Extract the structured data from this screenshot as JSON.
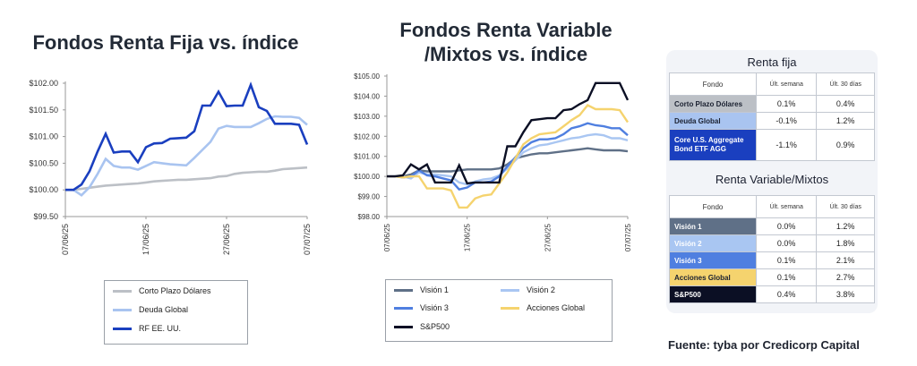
{
  "left_title": "Fondos Renta Fija vs. índice",
  "mid_title_line1": "Fondos Renta Variable",
  "mid_title_line2": "/Mixtos vs. índice",
  "source": "Fuente: tyba por Credicorp Capital",
  "colors": {
    "corto_plazo": "#bcc0c6",
    "deuda_global": "#a9c4f0",
    "rf_eeuu": "#1a3fbf",
    "vision1": "#5f7087",
    "vision2": "#a9c6f2",
    "vision3": "#4f7fe0",
    "acciones_global": "#f5d36e",
    "sp500": "#0b0f24"
  },
  "chart_data": [
    {
      "type": "line",
      "title": "Fondos Renta Fija vs. índice",
      "x_ticks": [
        "07/06/25",
        "17/06/25",
        "27/06/25",
        "07/07/25"
      ],
      "x_range": [
        "07/06/25",
        "07/07/25"
      ],
      "ylim": [
        99.5,
        102.0
      ],
      "y_ticks": [
        "$99.50",
        "$100.00",
        "$100.50",
        "$101.00",
        "$101.50",
        "$102.00"
      ],
      "grid": false,
      "legend": "bottom",
      "series": [
        {
          "name": "Corto Plazo Dólares",
          "color_key": "corto_plazo",
          "values": [
            100.0,
            100.0,
            100.02,
            100.04,
            100.06,
            100.08,
            100.09,
            100.1,
            100.11,
            100.12,
            100.14,
            100.16,
            100.17,
            100.18,
            100.19,
            100.19,
            100.2,
            100.21,
            100.22,
            100.25,
            100.26,
            100.3,
            100.32,
            100.33,
            100.34,
            100.34,
            100.36,
            100.39,
            100.4,
            100.41,
            100.42
          ]
        },
        {
          "name": "Deuda Global",
          "color_key": "deuda_global",
          "values": [
            100.0,
            100.0,
            99.9,
            100.05,
            100.3,
            100.58,
            100.45,
            100.42,
            100.42,
            100.38,
            100.45,
            100.52,
            100.5,
            100.48,
            100.47,
            100.46,
            100.6,
            100.75,
            100.9,
            101.15,
            101.2,
            101.18,
            101.18,
            101.18,
            101.25,
            101.33,
            101.38,
            101.37,
            101.37,
            101.35,
            101.22
          ]
        },
        {
          "name": "RF EE. UU.",
          "color_key": "rf_eeuu",
          "values": [
            100.0,
            100.0,
            100.1,
            100.35,
            100.72,
            101.05,
            100.7,
            100.72,
            100.72,
            100.52,
            100.8,
            100.87,
            100.88,
            100.96,
            100.97,
            100.98,
            101.1,
            101.58,
            101.58,
            101.84,
            101.57,
            101.58,
            101.58,
            101.97,
            101.55,
            101.48,
            101.24,
            101.24,
            101.24,
            101.22,
            100.85
          ]
        }
      ]
    },
    {
      "type": "line",
      "title": "Fondos Renta Variable /Mixtos vs. índice",
      "x_ticks": [
        "07/06/25",
        "17/06/25",
        "27/06/25",
        "07/07/25"
      ],
      "x_range": [
        "07/06/25",
        "07/07/25"
      ],
      "ylim": [
        98.0,
        105.0
      ],
      "y_ticks": [
        "$98.00",
        "$99.00",
        "$100.00",
        "$101.00",
        "$102.00",
        "$103.00",
        "$104.00",
        "$105.00"
      ],
      "grid": false,
      "legend": "bottom",
      "series": [
        {
          "name": "Visión 1",
          "color_key": "vision1",
          "values": [
            100.0,
            100.0,
            100.0,
            100.1,
            100.3,
            100.25,
            100.25,
            100.25,
            100.25,
            100.3,
            100.35,
            100.35,
            100.35,
            100.35,
            100.4,
            100.6,
            100.9,
            101.0,
            101.1,
            101.15,
            101.15,
            101.2,
            101.25,
            101.3,
            101.35,
            101.4,
            101.35,
            101.3,
            101.3,
            101.3,
            101.25
          ]
        },
        {
          "name": "Visión 2",
          "color_key": "vision2",
          "values": [
            100.0,
            100.0,
            100.0,
            99.9,
            100.2,
            100.1,
            100.1,
            100.05,
            100.0,
            99.7,
            99.6,
            99.75,
            99.85,
            99.9,
            100.05,
            100.4,
            100.8,
            101.2,
            101.4,
            101.55,
            101.6,
            101.7,
            101.8,
            101.9,
            101.95,
            102.05,
            102.1,
            102.05,
            101.9,
            101.9,
            101.8
          ]
        },
        {
          "name": "Visión 3",
          "color_key": "vision3",
          "values": [
            100.0,
            100.0,
            99.95,
            100.0,
            100.3,
            100.05,
            100.0,
            99.9,
            99.8,
            99.35,
            99.45,
            99.7,
            99.7,
            99.75,
            100.0,
            100.5,
            100.95,
            101.4,
            101.7,
            101.85,
            101.85,
            101.9,
            102.1,
            102.4,
            102.5,
            102.65,
            102.55,
            102.5,
            102.4,
            102.4,
            102.05
          ]
        },
        {
          "name": "Acciones Global",
          "color_key": "acciones_global",
          "values": [
            100.0,
            100.0,
            99.95,
            100.0,
            100.0,
            99.4,
            99.4,
            99.4,
            99.3,
            98.45,
            98.45,
            98.9,
            99.05,
            99.1,
            99.65,
            100.2,
            100.9,
            101.6,
            101.9,
            102.1,
            102.15,
            102.2,
            102.5,
            102.8,
            103.05,
            103.55,
            103.35,
            103.35,
            103.35,
            103.3,
            102.7
          ]
        },
        {
          "name": "S&P500",
          "color_key": "sp500",
          "values": [
            100.0,
            100.0,
            100.05,
            100.6,
            100.35,
            100.6,
            99.7,
            99.7,
            99.7,
            100.55,
            99.65,
            99.7,
            99.7,
            99.7,
            99.7,
            101.5,
            101.5,
            102.2,
            102.8,
            102.85,
            102.9,
            102.9,
            103.3,
            103.35,
            103.6,
            103.8,
            104.65,
            104.65,
            104.65,
            104.65,
            103.8
          ]
        }
      ]
    },
    {
      "type": "table",
      "sections": [
        {
          "title": "Renta fija",
          "headers": [
            "Fondo",
            "Últ. semana",
            "Últ. 30 días"
          ],
          "rows": [
            {
              "fund": "Corto Plazo Dólares",
              "week": "0.1%",
              "month": "0.4%",
              "color_key": "corto_plazo",
              "text_dark": true
            },
            {
              "fund": "Deuda Global",
              "week": "-0.1%",
              "month": "1.2%",
              "color_key": "deuda_global",
              "text_dark": true
            },
            {
              "fund": "Core U.S. Aggregate Bond ETF AGG",
              "week": "-1.1%",
              "month": "0.9%",
              "color_key": "rf_eeuu",
              "text_dark": false
            }
          ]
        },
        {
          "title": "Renta Variable/Mixtos",
          "headers": [
            "Fondo",
            "Últ. semana",
            "Últ. 30 días"
          ],
          "rows": [
            {
              "fund": "Visión 1",
              "week": "0.0%",
              "month": "1.2%",
              "color_key": "vision1",
              "text_dark": false
            },
            {
              "fund": "Visión 2",
              "week": "0.0%",
              "month": "1.8%",
              "color_key": "vision2",
              "text_dark": false
            },
            {
              "fund": "Visión 3",
              "week": "0.1%",
              "month": "2.1%",
              "color_key": "vision3",
              "text_dark": false
            },
            {
              "fund": "Acciones Global",
              "week": "0.1%",
              "month": "2.7%",
              "color_key": "acciones_global",
              "text_dark": true
            },
            {
              "fund": "S&P500",
              "week": "0.4%",
              "month": "3.8%",
              "color_key": "sp500",
              "text_dark": false
            }
          ]
        }
      ]
    }
  ]
}
